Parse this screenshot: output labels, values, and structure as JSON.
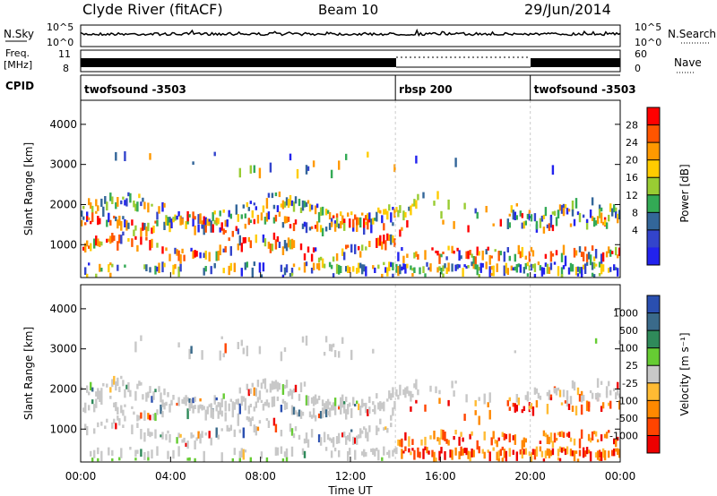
{
  "header": {
    "station": "Clyde River (fitACF)",
    "beam": "Beam 10",
    "date": "29/Jun/2014"
  },
  "chart_data": [
    {
      "type": "line",
      "panel": "noise",
      "left_label": "N.Sky",
      "right_label": "N.Search",
      "left_ticks": [
        "10^5",
        "10^0"
      ],
      "right_ticks": [
        "10^5",
        "10^0"
      ]
    },
    {
      "type": "line",
      "panel": "frequency",
      "left_label_1": "Freq.",
      "left_label_2": "[MHz]",
      "right_label": "Nave",
      "left_ticks": [
        "11",
        "8"
      ],
      "right_ticks": [
        "60",
        "0"
      ],
      "cpid_label": "CPID",
      "programs": [
        {
          "name": "twofsound -3503",
          "start_hour": 0,
          "end_hour": 14
        },
        {
          "name": "rbsp 200",
          "start_hour": 14,
          "end_hour": 20
        },
        {
          "name": "twofsound -3503",
          "start_hour": 20,
          "end_hour": 24
        }
      ]
    },
    {
      "type": "heatmap",
      "panel": "power",
      "ylabel": "Slant Range [km]",
      "yticks": [
        1000,
        2000,
        3000,
        4000
      ],
      "ylim": [
        180,
        4600
      ],
      "colorbar_label": "Power [dB]",
      "colorbar_ticks": [
        "28",
        "24",
        "20",
        "16",
        "12",
        "8",
        "4"
      ],
      "colorbar_colors": [
        "#ff0000",
        "#ff5500",
        "#ff9900",
        "#ffcc00",
        "#99cc33",
        "#33aa55",
        "#336699",
        "#3344cc",
        "#2222ee"
      ]
    },
    {
      "type": "heatmap",
      "panel": "velocity",
      "ylabel": "Slant Range [km]",
      "yticks": [
        1000,
        2000,
        3000,
        4000
      ],
      "ylim": [
        180,
        4600
      ],
      "xlabel": "Time UT",
      "xticks": [
        "00:00",
        "04:00",
        "08:00",
        "12:00",
        "16:00",
        "20:00",
        "00:00"
      ],
      "xlim": [
        0,
        24
      ],
      "colorbar_label": "Velocity [m s⁻¹]",
      "colorbar_ticks": [
        "1000",
        "500",
        "100",
        "25",
        "-25",
        "-100",
        "-500",
        "-1000"
      ],
      "colorbar_colors": [
        "#2a4fb0",
        "#3a6a8a",
        "#2f8a5a",
        "#66cc33",
        "#c8c8c8",
        "#ffbb33",
        "#ff8800",
        "#ff4400",
        "#ee0000"
      ]
    }
  ]
}
